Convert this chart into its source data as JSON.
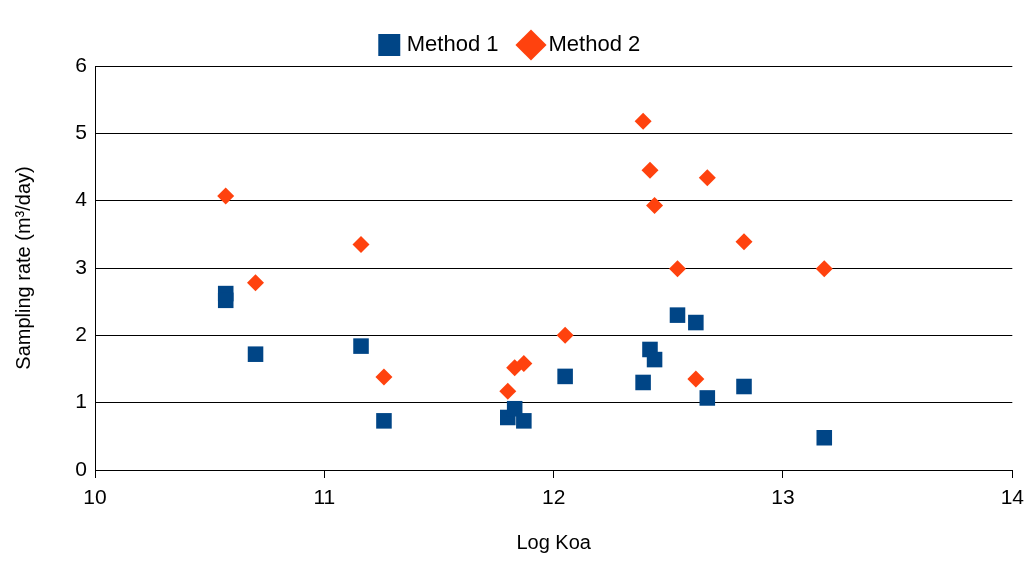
{
  "chart_data": {
    "type": "scatter",
    "xlabel": "Log Koa",
    "ylabel": "Sampling rate (m³/day)",
    "xlim": [
      10,
      14
    ],
    "xticks": [
      10,
      11,
      12,
      13,
      14
    ],
    "ylim": [
      0,
      6
    ],
    "yticks": [
      0,
      1,
      2,
      3,
      4,
      5,
      6
    ],
    "grid": "y",
    "legend": "top",
    "series": [
      {
        "name": "Method 1",
        "color": "#004586",
        "marker": "square",
        "x": [
          10.57,
          10.57,
          10.7,
          11.16,
          11.26,
          11.8,
          11.83,
          11.87,
          12.05,
          12.39,
          12.42,
          12.44,
          12.54,
          12.62,
          12.67,
          12.83,
          13.18
        ],
        "values": [
          2.62,
          2.52,
          1.72,
          1.84,
          0.73,
          0.78,
          0.91,
          0.73,
          1.39,
          1.3,
          1.79,
          1.64,
          2.3,
          2.19,
          1.07,
          1.24,
          0.48
        ]
      },
      {
        "name": "Method 2",
        "color": "#ff420e",
        "marker": "diamond",
        "x": [
          10.57,
          10.7,
          11.16,
          11.26,
          11.8,
          11.83,
          11.87,
          12.05,
          12.39,
          12.42,
          12.44,
          12.54,
          12.62,
          12.67,
          12.83,
          13.18
        ],
        "values": [
          4.07,
          2.78,
          3.35,
          1.38,
          1.17,
          1.52,
          1.58,
          2.0,
          5.18,
          4.45,
          3.93,
          2.99,
          1.35,
          4.34,
          3.39,
          2.99
        ]
      }
    ]
  }
}
